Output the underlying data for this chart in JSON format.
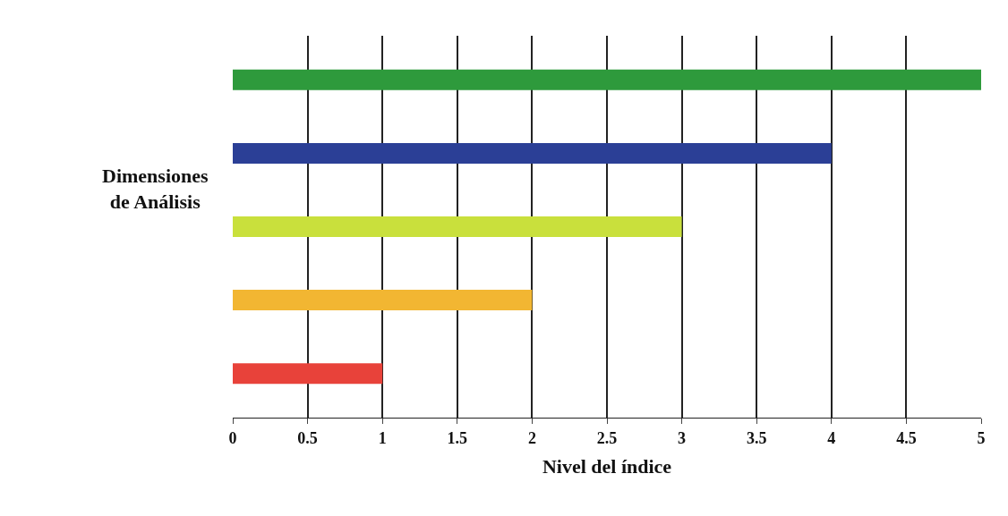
{
  "chart_data": {
    "type": "bar",
    "orientation": "horizontal",
    "categories": [
      null,
      null,
      null,
      null,
      null
    ],
    "values": [
      5,
      4,
      3,
      2,
      1
    ],
    "colors": [
      "#2e9a3c",
      "#2b3f96",
      "#c9e03c",
      "#f2b632",
      "#e8423a"
    ],
    "xlabel": "Nivel del índice",
    "ylabel": "Dimensiones de Análisis",
    "xlim": [
      0,
      5
    ],
    "xticks": [
      0,
      0.5,
      1,
      1.5,
      2,
      2.5,
      3,
      3.5,
      4,
      4.5,
      5
    ],
    "grid": "x"
  }
}
